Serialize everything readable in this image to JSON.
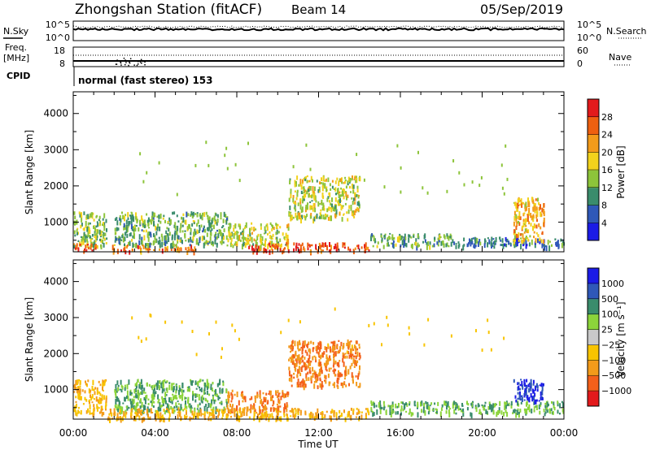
{
  "header": {
    "station": "Zhongshan Station (fitACF)",
    "beam": "Beam 14",
    "date": "05/Sep/2019"
  },
  "noise_panel": {
    "left_label": "N.Sky",
    "right_label": "N.Search",
    "left_ticks": [
      "10^5",
      "10^0"
    ],
    "right_ticks": [
      "10^5",
      "10^0"
    ]
  },
  "freq_panel": {
    "left_label_line1": "Freq.",
    "left_label_line2": "[MHz]",
    "right_label": "Nave",
    "left_ticks": [
      "18",
      "8"
    ],
    "right_ticks": [
      "60",
      "0"
    ]
  },
  "cpid": {
    "label": "CPID",
    "text": "normal (fast stereo) 153"
  },
  "x_axis": {
    "label": "Time UT",
    "tick_labels": [
      "00:00",
      "04:00",
      "08:00",
      "12:00",
      "16:00",
      "20:00",
      "00:00"
    ]
  },
  "power_panel": {
    "ylabel": "Slant Range [km]",
    "yticks": [
      "1000",
      "2000",
      "3000",
      "4000"
    ],
    "colorbar_title": "Power [dB]",
    "colorbar_labels": [
      "4",
      "8",
      "12",
      "16",
      "20",
      "24",
      "28"
    ]
  },
  "velocity_panel": {
    "ylabel": "Slant Range [km]",
    "yticks": [
      "1000",
      "2000",
      "3000",
      "4000"
    ],
    "colorbar_title": "Velocity [m s⁻¹]",
    "colorbar_labels": [
      "1000",
      "500",
      "100",
      "25",
      "−25",
      "−100",
      "−500",
      "−1000"
    ]
  },
  "chart_data": [
    {
      "type": "heatmap",
      "title": "Power [dB]",
      "xlabel": "Time UT",
      "ylabel": "Slant Range [km]",
      "xlim_hours": [
        0,
        24
      ],
      "ylim": [
        180,
        4600
      ],
      "color_levels": [
        4,
        8,
        12,
        16,
        20,
        24,
        28
      ],
      "regions": [
        {
          "t0": 0.0,
          "t1": 1.6,
          "r0": 350,
          "r1": 1300,
          "value": 14
        },
        {
          "t0": 0.0,
          "t1": 1.2,
          "r0": 220,
          "r1": 420,
          "value": 28
        },
        {
          "t0": 1.6,
          "t1": 6.0,
          "r0": 220,
          "r1": 400,
          "value": 24
        },
        {
          "t0": 2.0,
          "t1": 7.5,
          "r0": 400,
          "r1": 1300,
          "value": 12
        },
        {
          "t0": 7.5,
          "t1": 10.5,
          "r0": 350,
          "r1": 1000,
          "value": 16
        },
        {
          "t0": 8.5,
          "t1": 14.5,
          "r0": 220,
          "r1": 450,
          "value": 28
        },
        {
          "t0": 10.5,
          "t1": 14.0,
          "r0": 1100,
          "r1": 2300,
          "value": 16
        },
        {
          "t0": 14.5,
          "t1": 18.5,
          "r0": 350,
          "r1": 700,
          "value": 12
        },
        {
          "t0": 18.5,
          "t1": 24.0,
          "r0": 350,
          "r1": 600,
          "value": 8
        },
        {
          "t0": 21.5,
          "t1": 23.0,
          "r0": 500,
          "r1": 1700,
          "value": 20
        }
      ]
    },
    {
      "type": "heatmap",
      "title": "Velocity [m s⁻¹]",
      "xlabel": "Time UT",
      "ylabel": "Slant Range [km]",
      "xlim_hours": [
        0,
        24
      ],
      "ylim": [
        180,
        4600
      ],
      "color_levels": [
        -1000,
        -500,
        -100,
        -25,
        25,
        100,
        500,
        1000
      ],
      "regions": [
        {
          "t0": 0.0,
          "t1": 1.6,
          "r0": 350,
          "r1": 1300,
          "value": -100
        },
        {
          "t0": 2.0,
          "t1": 7.5,
          "r0": 400,
          "r1": 1300,
          "value": 100
        },
        {
          "t0": 1.6,
          "t1": 14.5,
          "r0": 220,
          "r1": 500,
          "value": -100
        },
        {
          "t0": 7.5,
          "t1": 10.5,
          "r0": 450,
          "r1": 1000,
          "value": -500
        },
        {
          "t0": 10.5,
          "t1": 14.0,
          "r0": 1100,
          "r1": 2400,
          "value": -500
        },
        {
          "t0": 14.5,
          "t1": 18.5,
          "r0": 350,
          "r1": 700,
          "value": 100
        },
        {
          "t0": 18.5,
          "t1": 24.0,
          "r0": 350,
          "r1": 700,
          "value": 100
        },
        {
          "t0": 21.5,
          "t1": 23.0,
          "r0": 700,
          "r1": 1300,
          "value": 1000
        }
      ]
    }
  ]
}
